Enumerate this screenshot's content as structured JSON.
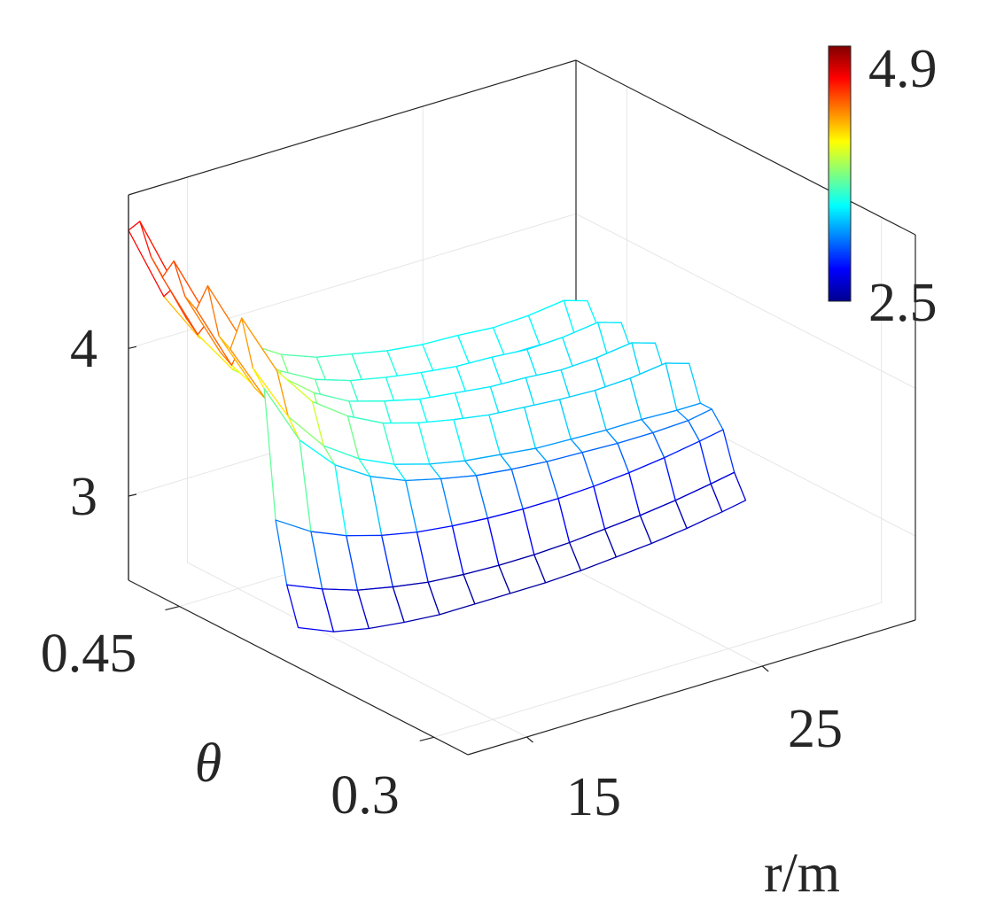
{
  "chart_data": {
    "type": "surface",
    "style": "mesh",
    "xlabel": "r/m",
    "ylabel": "θ",
    "zlabel": "",
    "title": "",
    "x_ticks": [
      "15",
      "25"
    ],
    "y_ticks": [
      "0.45",
      "0.3"
    ],
    "z_ticks": [
      "3",
      "4"
    ],
    "xlim": [
      12.5,
      31.5
    ],
    "ylim": [
      0.28,
      0.48
    ],
    "zlim": [
      2.43,
      5.04
    ],
    "colormap": "jet",
    "colorbar": {
      "min_label": "2.5",
      "max_label": "4.9",
      "clim": [
        2.5,
        4.9
      ],
      "placement": "top-right"
    },
    "grid": true,
    "r": [
      12.5,
      14,
      15.5,
      17,
      18.5,
      20,
      21.5,
      23,
      24.5,
      26,
      27.5,
      29,
      30.5,
      31.5
    ],
    "theta": [
      0.48,
      0.4733,
      0.4667,
      0.46,
      0.4533,
      0.4467,
      0.44,
      0.4333,
      0.4267,
      0.42,
      0.4133,
      0.4067,
      0.4,
      0.3933,
      0.3867,
      0.38
    ],
    "z": [
      [
        4.8,
        4.28,
        3.93,
        3.72,
        3.57,
        3.48,
        3.42,
        3.38,
        3.35,
        3.33,
        3.32,
        3.32,
        3.3,
        3.3
      ],
      [
        4.9,
        4.39,
        4.06,
        3.86,
        3.71,
        3.62,
        3.57,
        3.52,
        3.49,
        3.48,
        3.46,
        3.47,
        3.5,
        3.45
      ],
      [
        4.7,
        4.21,
        3.89,
        3.69,
        3.55,
        3.47,
        3.41,
        3.37,
        3.34,
        3.33,
        3.31,
        3.31,
        3.3,
        3.3
      ],
      [
        4.6,
        4.14,
        3.83,
        3.65,
        3.52,
        3.44,
        3.39,
        3.35,
        3.32,
        3.31,
        3.29,
        3.29,
        3.28,
        3.28
      ],
      [
        4.75,
        4.28,
        3.98,
        3.79,
        3.66,
        3.58,
        3.53,
        3.49,
        3.46,
        3.45,
        3.43,
        3.44,
        3.47,
        3.42
      ],
      [
        4.55,
        4.1,
        3.8,
        3.61,
        3.48,
        3.41,
        3.35,
        3.32,
        3.29,
        3.28,
        3.26,
        3.26,
        3.25,
        3.25
      ],
      [
        4.5,
        4.05,
        3.76,
        3.58,
        3.45,
        3.37,
        3.32,
        3.28,
        3.26,
        3.25,
        3.23,
        3.23,
        3.22,
        3.22
      ],
      [
        4.7,
        4.25,
        3.95,
        3.76,
        3.63,
        3.56,
        3.5,
        3.47,
        3.44,
        3.43,
        3.41,
        3.42,
        3.45,
        3.4
      ],
      [
        4.4,
        3.98,
        3.7,
        3.54,
        3.42,
        3.34,
        3.3,
        3.26,
        3.24,
        3.22,
        3.21,
        3.21,
        3.2,
        3.2
      ],
      [
        4.35,
        3.94,
        3.67,
        3.51,
        3.39,
        3.32,
        3.27,
        3.24,
        3.22,
        3.2,
        3.19,
        3.19,
        3.18,
        3.18
      ],
      [
        4.6,
        4.17,
        3.89,
        3.72,
        3.6,
        3.53,
        3.48,
        3.44,
        3.42,
        3.4,
        3.39,
        3.4,
        3.43,
        3.38
      ],
      [
        4.3,
        3.9,
        3.63,
        3.47,
        3.36,
        3.29,
        3.24,
        3.21,
        3.18,
        3.17,
        3.16,
        3.16,
        3.15,
        3.15
      ],
      [
        4.2,
        3.78,
        3.54,
        3.39,
        3.29,
        3.23,
        3.18,
        3.15,
        3.13,
        3.12,
        3.11,
        3.11,
        3.12,
        3.15
      ],
      [
        3.35,
        3.2,
        3.1,
        3.03,
        2.98,
        2.95,
        2.93,
        2.92,
        2.92,
        2.93,
        2.95,
        2.98,
        3.02,
        3.05
      ],
      [
        2.95,
        2.85,
        2.77,
        2.72,
        2.68,
        2.66,
        2.65,
        2.65,
        2.66,
        2.68,
        2.7,
        2.73,
        2.77,
        2.8
      ],
      [
        2.7,
        2.6,
        2.55,
        2.52,
        2.5,
        2.5,
        2.5,
        2.5,
        2.51,
        2.53,
        2.55,
        2.58,
        2.62,
        2.65
      ]
    ]
  }
}
